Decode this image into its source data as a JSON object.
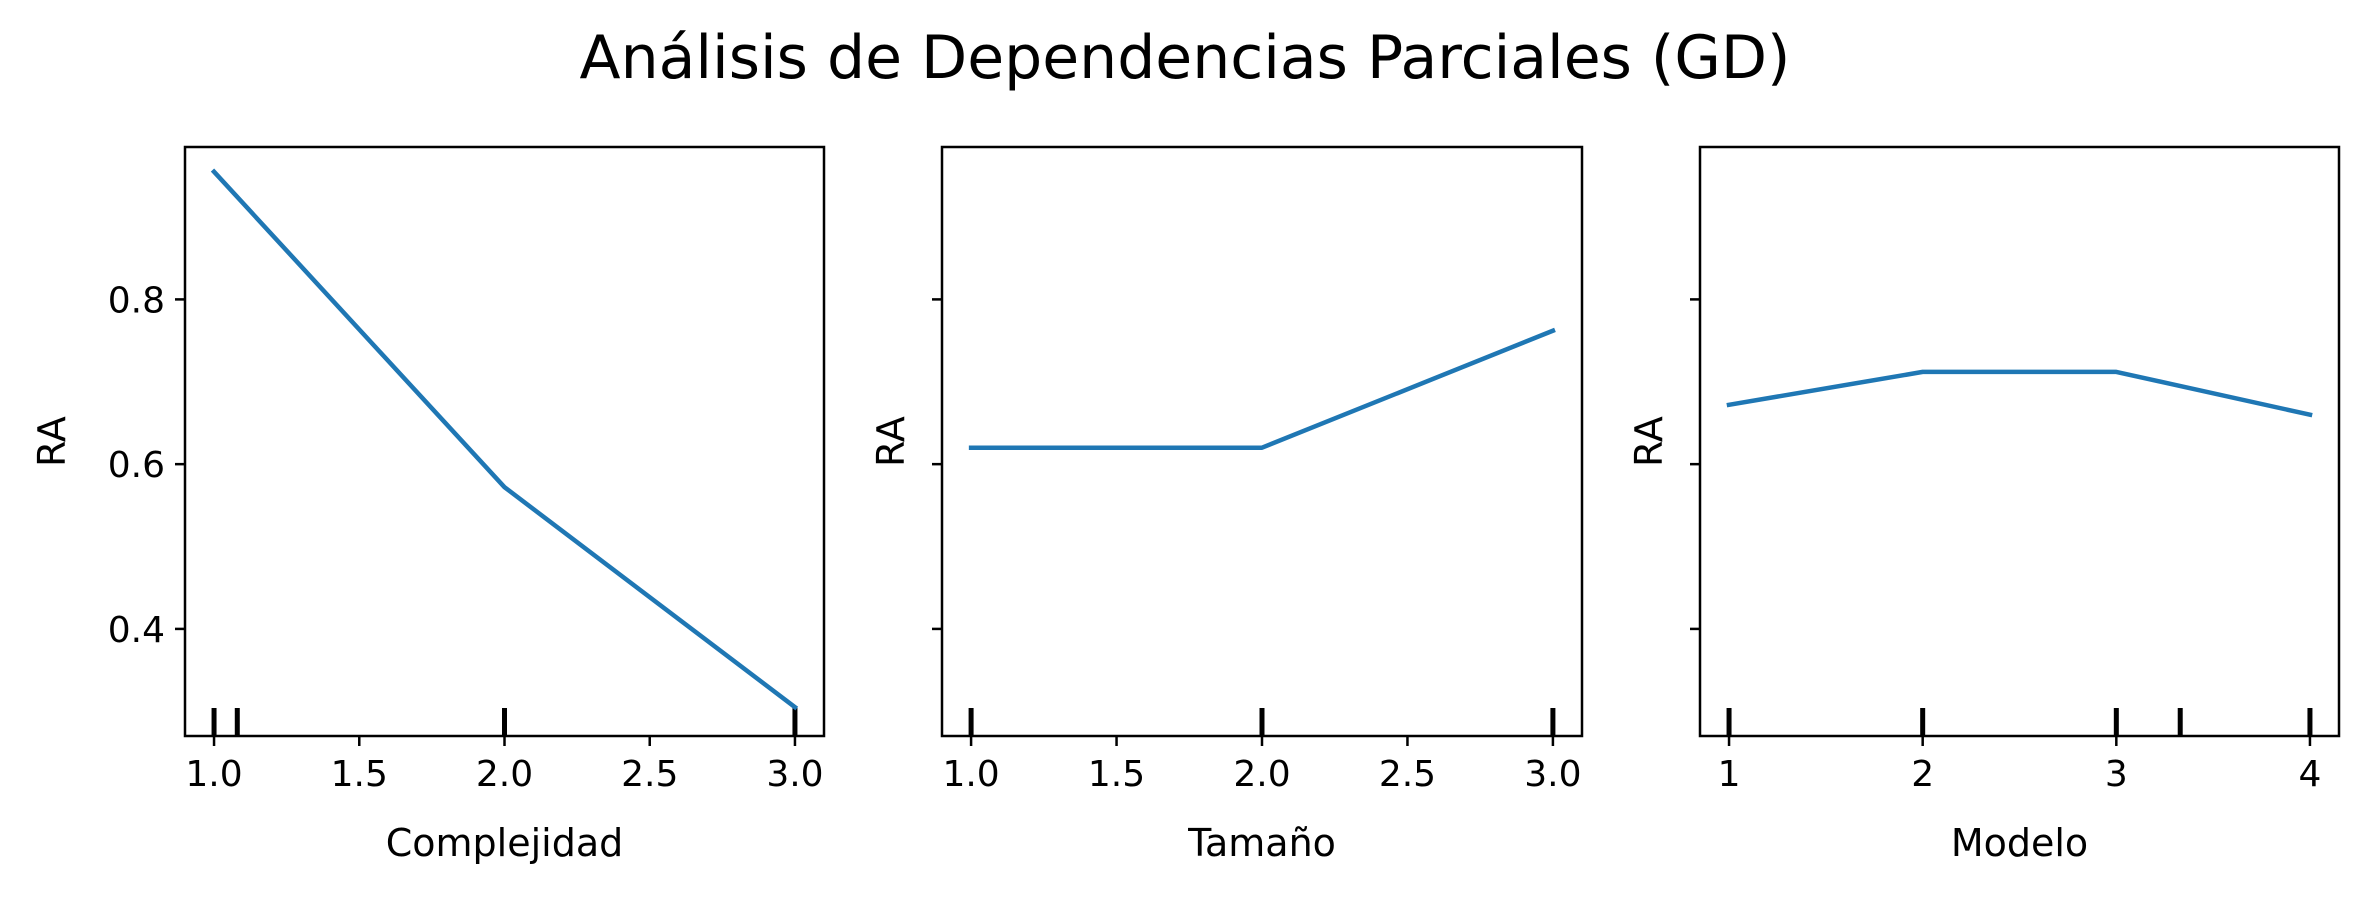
{
  "title": "Análisis de Dependencias Parciales (GD)",
  "colors": {
    "line": "#1f77b4",
    "axes": "#000000",
    "background": "#ffffff"
  },
  "chart_data": [
    {
      "type": "line",
      "xlabel": "Complejidad",
      "ylabel": "RA",
      "xlim": [
        0.9,
        3.1
      ],
      "ylim": [
        0.27,
        0.985
      ],
      "xticks": [
        1.0,
        1.5,
        2.0,
        2.5,
        3.0
      ],
      "xtick_labels": [
        "1.0",
        "1.5",
        "2.0",
        "2.5",
        "3.0"
      ],
      "yticks": [
        0.4,
        0.6,
        0.8
      ],
      "ytick_labels": [
        "0.4",
        "0.6",
        "0.8"
      ],
      "x": [
        1.0,
        2.0,
        3.0
      ],
      "y": [
        0.955,
        0.572,
        0.305
      ],
      "rug": [
        1.0,
        1.08,
        2.0,
        3.0
      ]
    },
    {
      "type": "line",
      "xlabel": "Tamaño",
      "ylabel": "RA",
      "xlim": [
        0.9,
        3.1
      ],
      "ylim": [
        0.27,
        0.985
      ],
      "xticks": [
        1.0,
        1.5,
        2.0,
        2.5,
        3.0
      ],
      "xtick_labels": [
        "1.0",
        "1.5",
        "2.0",
        "2.5",
        "3.0"
      ],
      "yticks": [
        0.4,
        0.6,
        0.8
      ],
      "ytick_labels": [
        "",
        "",
        ""
      ],
      "x": [
        1.0,
        2.0,
        3.0
      ],
      "y": [
        0.62,
        0.62,
        0.762
      ],
      "rug": [
        1.0,
        2.0,
        3.0
      ]
    },
    {
      "type": "line",
      "xlabel": "Modelo",
      "ylabel": "RA",
      "xlim": [
        0.85,
        4.15
      ],
      "ylim": [
        0.27,
        0.985
      ],
      "xticks": [
        1,
        2,
        3,
        4
      ],
      "xtick_labels": [
        "1",
        "2",
        "3",
        "4"
      ],
      "yticks": [
        0.4,
        0.6,
        0.8
      ],
      "ytick_labels": [
        "",
        "",
        ""
      ],
      "x": [
        1,
        2,
        3,
        4
      ],
      "y": [
        0.672,
        0.712,
        0.712,
        0.66
      ],
      "rug": [
        1.0,
        2.0,
        3.0,
        3.33,
        4.0
      ]
    }
  ]
}
